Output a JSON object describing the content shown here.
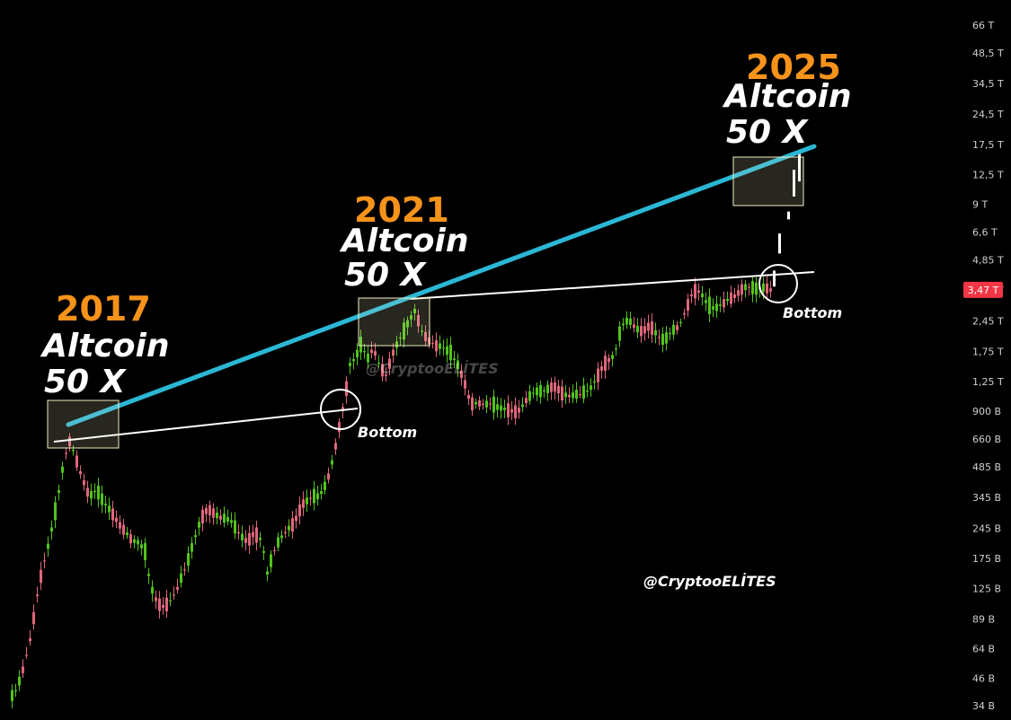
{
  "chart_data": {
    "type": "candlestick",
    "y_scale": "log",
    "ylim_billions": [
      31,
      75000
    ],
    "colors": {
      "up": "#51c41a",
      "down": "#e0667a",
      "projection": "#ffffff",
      "resistance": "#2bb7d5",
      "support": "#ffffff",
      "year": "#f7931a",
      "highlight_box": "#f1efc2",
      "price_badge": "#f23645"
    },
    "y_axis_ticks": [
      "34 B",
      "46 B",
      "64 B",
      "89 B",
      "125 B",
      "175 B",
      "245 B",
      "345 B",
      "485 B",
      "660 B",
      "900 B",
      "1,25 T",
      "1,75 T",
      "2,45 T",
      "3,47 T",
      "4,85 T",
      "6,6 T",
      "9 T",
      "12,5 T",
      "17,5 T",
      "24,5 T",
      "34,5 T",
      "48,5 T",
      "66 T"
    ],
    "y_axis_tick_values_billions": [
      34,
      46,
      64,
      89,
      125,
      175,
      245,
      345,
      485,
      660,
      900,
      1250,
      1750,
      2450,
      3470,
      4850,
      6600,
      9000,
      12500,
      17500,
      24500,
      34500,
      48500,
      66000
    ],
    "current_price_label": "3,47 T",
    "current_price_billions": 3470,
    "annotations": [
      {
        "year": "2017",
        "line1": "Altcoin",
        "line2": "50 X"
      },
      {
        "year": "2021",
        "line1": "Altcoin",
        "line2": "50 X"
      },
      {
        "year": "2025",
        "line1": "Altcoin",
        "line2": "50 X"
      }
    ],
    "bottom_labels": [
      "Bottom",
      "Bottom"
    ],
    "watermark": "@CryptooELİTES"
  }
}
